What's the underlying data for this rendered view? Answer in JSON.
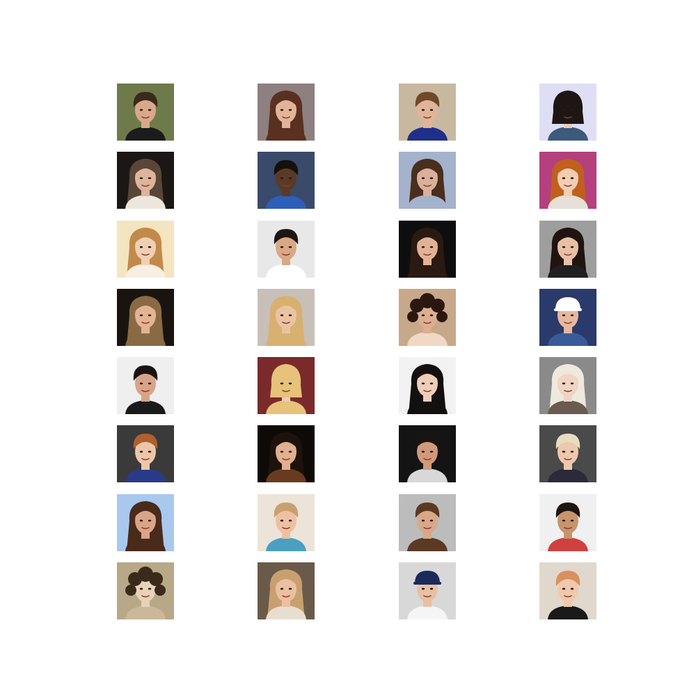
{
  "grid": {
    "rows": 8,
    "cols": 4,
    "faces": [
      {
        "bg": "#6f7a4a",
        "hair": "#3a2a1e",
        "skin": "#d9a88a",
        "shirt": "#1c1c1c",
        "hair_style": "short"
      },
      {
        "bg": "#8e7f80",
        "hair": "#5a3020",
        "skin": "#e2b497",
        "shirt": "#5a3020",
        "hair_style": "long"
      },
      {
        "bg": "#c9b8a0",
        "hair": "#6e4a2a",
        "skin": "#e0b49a",
        "shirt": "#1f2f8a",
        "hair_style": "short"
      },
      {
        "bg": "#dedff5",
        "hair": "#1d1614",
        "skin": "#eccbb8",
        "shirt": "#3d5a7a",
        "hair_style": "bob"
      },
      {
        "bg": "#1b1714",
        "hair": "#5a4638",
        "skin": "#ddb49c",
        "shirt": "#ece6dc",
        "hair_style": "long"
      },
      {
        "bg": "#3a4a6a",
        "hair": "#15100c",
        "skin": "#5a3a26",
        "shirt": "#2e5fb8",
        "hair_style": "short"
      },
      {
        "bg": "#a4b2cc",
        "hair": "#4a2e1e",
        "skin": "#d9b09a",
        "shirt": "#a4b2cc",
        "hair_style": "long"
      },
      {
        "bg": "#b4407e",
        "hair": "#c0601e",
        "skin": "#f2cdb2",
        "shirt": "#e7e0d8",
        "hair_style": "long"
      },
      {
        "bg": "#f5e4c0",
        "hair": "#c28a4a",
        "skin": "#f0d0b4",
        "shirt": "#f7efe2",
        "hair_style": "long"
      },
      {
        "bg": "#e8e8e8",
        "hair": "#1e1612",
        "skin": "#d9a886",
        "shirt": "#ffffff",
        "hair_style": "short"
      },
      {
        "bg": "#0e0e0e",
        "hair": "#2a1a12",
        "skin": "#e2b296",
        "shirt": "#2a1a12",
        "hair_style": "long"
      },
      {
        "bg": "#9e9e9e",
        "hair": "#201410",
        "skin": "#e8c0a6",
        "shirt": "#202020",
        "hair_style": "long"
      },
      {
        "bg": "#1a1410",
        "hair": "#8a6a44",
        "skin": "#e2b494",
        "shirt": "#8a6a44",
        "hair_style": "long"
      },
      {
        "bg": "#c8c0b8",
        "hair": "#d8b070",
        "skin": "#eac4a2",
        "shirt": "#d8b070",
        "hair_style": "long"
      },
      {
        "bg": "#c8a88a",
        "hair": "#2a1810",
        "skin": "#dcae92",
        "shirt": "#f0d8c4",
        "hair_style": "curly"
      },
      {
        "bg": "#2a3a6a",
        "hair": "#ffffff",
        "skin": "#e6b89e",
        "shirt": "#3a5a9a",
        "hair_style": "cap"
      },
      {
        "bg": "#efefef",
        "hair": "#1a1410",
        "skin": "#d8a488",
        "shirt": "#1a1a1a",
        "hair_style": "short"
      },
      {
        "bg": "#7a2a2a",
        "hair": "#e6c27a",
        "skin": "#f2cbae",
        "shirt": "#e6c27a",
        "hair_style": "bob"
      },
      {
        "bg": "#f2f2f2",
        "hair": "#141010",
        "skin": "#f0cdb8",
        "shirt": "#141010",
        "hair_style": "long"
      },
      {
        "bg": "#8a8a8a",
        "hair": "#efe8dc",
        "skin": "#f0d4c4",
        "shirt": "#6a5a50",
        "hair_style": "long"
      },
      {
        "bg": "#3a3a3a",
        "hair": "#b06030",
        "skin": "#edc6aa",
        "shirt": "#2a3a8a",
        "hair_style": "short"
      },
      {
        "bg": "#0e0a08",
        "hair": "#1e120c",
        "skin": "#e0b090",
        "shirt": "#6a3a20",
        "hair_style": "long"
      },
      {
        "bg": "#141414",
        "hair": "#1a1410",
        "skin": "#d09a7a",
        "shirt": "#d8d8d8",
        "hair_style": "short"
      },
      {
        "bg": "#4a4a4a",
        "hair": "#e8dcc0",
        "skin": "#eec8ac",
        "shirt": "#2a2a3a",
        "hair_style": "short"
      },
      {
        "bg": "#a8c8ee",
        "hair": "#4a2a1a",
        "skin": "#d9a488",
        "shirt": "#4a2a1a",
        "hair_style": "long"
      },
      {
        "bg": "#ece4d8",
        "hair": "#c8a070",
        "skin": "#eec0a2",
        "shirt": "#4aa0c0",
        "hair_style": "short"
      },
      {
        "bg": "#bcbcbc",
        "hair": "#5a3a22",
        "skin": "#d8a888",
        "shirt": "#5a3a22",
        "hair_style": "short"
      },
      {
        "bg": "#f0f0f0",
        "hair": "#1e1410",
        "skin": "#c8946e",
        "shirt": "#d04040",
        "hair_style": "short"
      },
      {
        "bg": "#b8a888",
        "hair": "#3a2a1a",
        "skin": "#e6d2b8",
        "shirt": "#cbb898",
        "hair_style": "curly"
      },
      {
        "bg": "#6a5a4a",
        "hair": "#c8a070",
        "skin": "#eac0a0",
        "shirt": "#e8ded0",
        "hair_style": "long"
      },
      {
        "bg": "#d8d8d8",
        "hair": "#1a2a5a",
        "skin": "#e8c0a4",
        "shirt": "#f5f5f5",
        "hair_style": "cap"
      },
      {
        "bg": "#e0d8cc",
        "hair": "#d89060",
        "skin": "#f0c8ac",
        "shirt": "#1a1a1a",
        "hair_style": "short"
      }
    ]
  }
}
